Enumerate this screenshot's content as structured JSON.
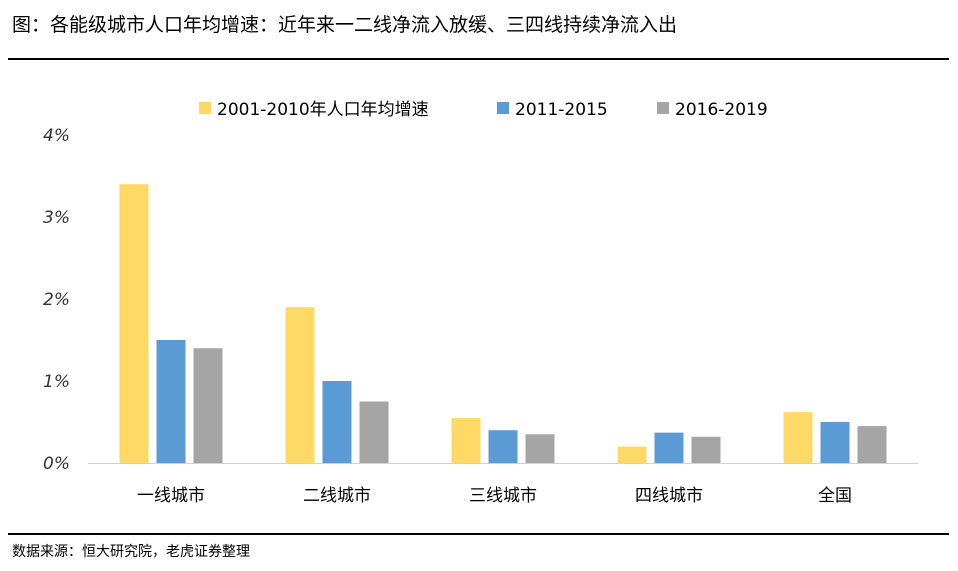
{
  "page": {
    "title": "图：各能级城市人口年均增速：近年来一二线净流入放缓、三四线持续净流入出",
    "source": "数据来源：恒大研究院，老虎证券整理"
  },
  "chart_data": {
    "type": "bar",
    "categories": [
      "一线城市",
      "二线城市",
      "三线城市",
      "四线城市",
      "全国"
    ],
    "series": [
      {
        "name": "2001-2010年人口年均增速",
        "color": "#FFD966",
        "values": [
          3.4,
          1.9,
          0.55,
          0.2,
          0.62
        ]
      },
      {
        "name": "2011-2015",
        "color": "#5B9BD5",
        "values": [
          1.5,
          1.0,
          0.4,
          0.37,
          0.5
        ]
      },
      {
        "name": "2016-2019",
        "color": "#A5A5A5",
        "values": [
          1.4,
          0.75,
          0.35,
          0.32,
          0.45
        ]
      }
    ],
    "yticks": [
      "0%",
      "1%",
      "2%",
      "3%",
      "4%"
    ],
    "ylim": [
      0,
      4
    ],
    "grid": false,
    "legend_position": "top-center"
  }
}
